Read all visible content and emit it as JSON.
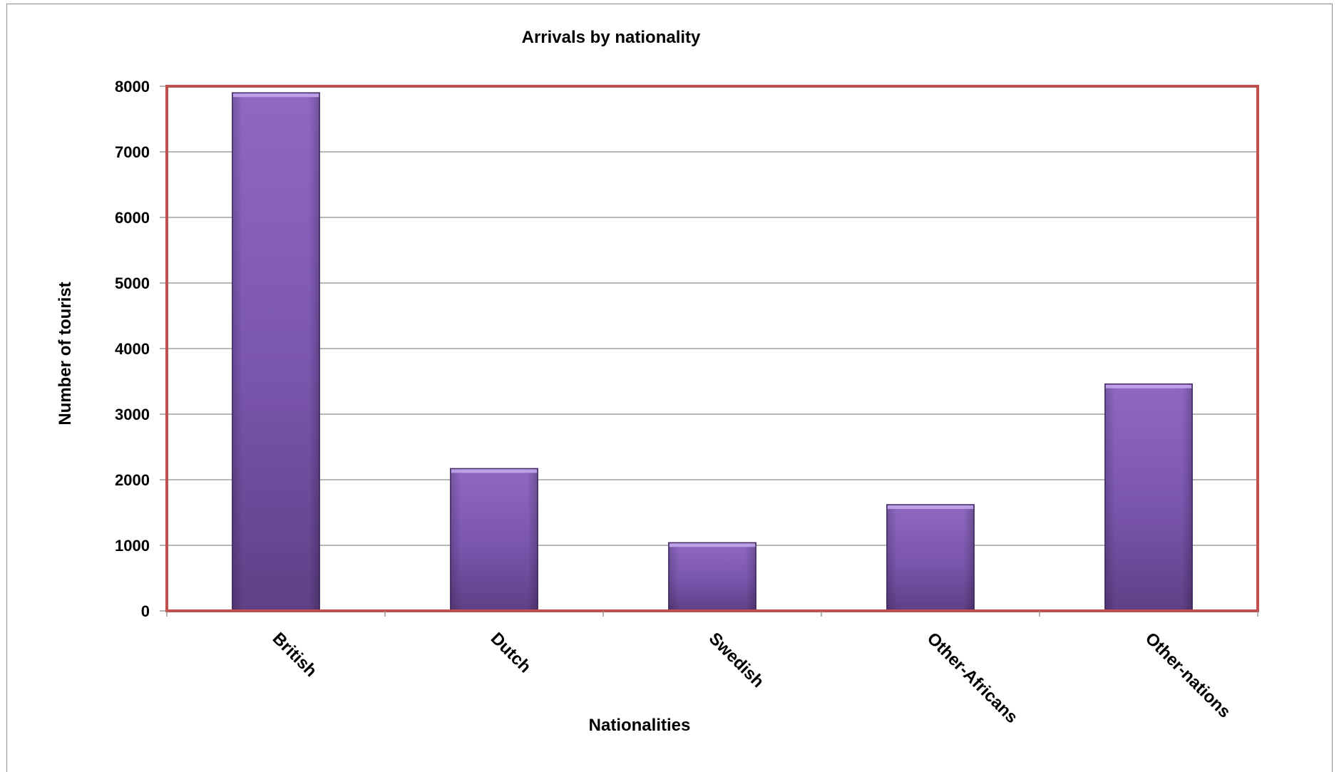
{
  "chart_data": {
    "type": "bar",
    "title": "Arrivals by nationality",
    "xlabel": "Nationalities",
    "ylabel": "Number of tourist",
    "categories": [
      "British",
      "Dutch",
      "Swedish",
      "Other-Africans",
      "Other-nations"
    ],
    "values": [
      7900,
      2170,
      1040,
      1620,
      3460
    ],
    "ylim": [
      0,
      8000
    ],
    "yticks": [
      "0",
      "1000",
      "2000",
      "3000",
      "4000",
      "5000",
      "6000",
      "7000",
      "8000"
    ],
    "grid": true,
    "legend": "none",
    "colors": {
      "bar_top": "#8f68c2",
      "bar_mid": "#7a55ad",
      "bar_bottom": "#5f3f86",
      "bar_edge": "#4a2f6e",
      "plot_border": "#c0504d",
      "gridline": "#8c8c8c"
    }
  }
}
